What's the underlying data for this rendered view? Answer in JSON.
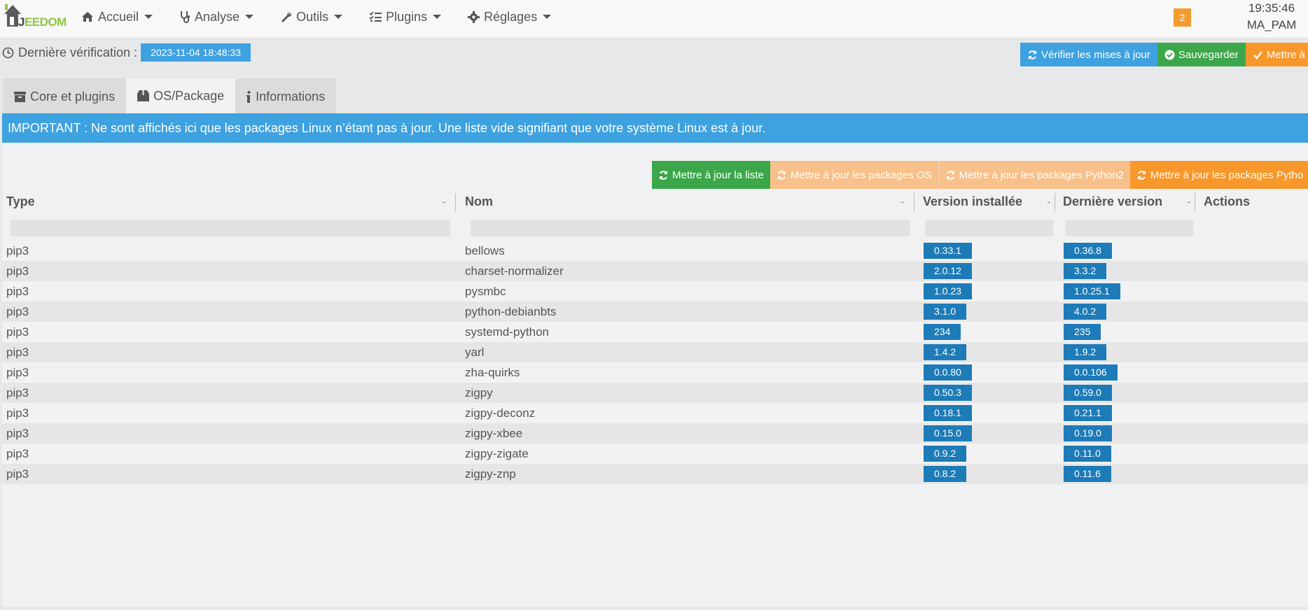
{
  "brand": {
    "logo_text": "EEDOM",
    "logo_letter": "J"
  },
  "nav": {
    "items": [
      {
        "label": "Accueil",
        "icon": "home-icon"
      },
      {
        "label": "Analyse",
        "icon": "stethoscope-icon"
      },
      {
        "label": "Outils",
        "icon": "wrench-icon"
      },
      {
        "label": "Plugins",
        "icon": "tasks-icon"
      },
      {
        "label": "Réglages",
        "icon": "cog-icon"
      }
    ],
    "notification_count": "2",
    "time": "19:35:46",
    "user": "MA_PAM"
  },
  "lastcheck": {
    "label": "Dernière vérification :",
    "value": "2023-11-04 18:48:33"
  },
  "top_actions": {
    "check": "Vérifier les mises à jour",
    "save": "Sauvegarder",
    "update": "Mettre à jo"
  },
  "tabs": [
    {
      "label": "Core et plugins",
      "icon": "archive-icon"
    },
    {
      "label": "OS/Package",
      "icon": "box-icon"
    },
    {
      "label": "Informations",
      "icon": "info-icon"
    }
  ],
  "alert": "IMPORTANT : Ne sont affichés ici que les packages Linux n’étant pas à jour. Une liste vide signifiant que votre système Linux est à jour.",
  "pkg_actions": {
    "update_list": "Mettre à jour la liste",
    "update_os": "Mettre à jour les packages OS",
    "update_python2": "Mettre à jour les packages Python2",
    "update_python3": "Mettre à jour les packages Pytho"
  },
  "table": {
    "headers": {
      "type": "Type",
      "name": "Nom",
      "installed": "Version installée",
      "latest": "Dernière version",
      "actions": "Actions",
      "sort": "-"
    },
    "rows": [
      {
        "type": "pip3",
        "name": "bellows",
        "installed": "0.33.1",
        "latest": "0.36.8"
      },
      {
        "type": "pip3",
        "name": "charset-normalizer",
        "installed": "2.0.12",
        "latest": "3.3.2"
      },
      {
        "type": "pip3",
        "name": "pysmbc",
        "installed": "1.0.23",
        "latest": "1.0.25.1"
      },
      {
        "type": "pip3",
        "name": "python-debianbts",
        "installed": "3.1.0",
        "latest": "4.0.2"
      },
      {
        "type": "pip3",
        "name": "systemd-python",
        "installed": "234",
        "latest": "235"
      },
      {
        "type": "pip3",
        "name": "yarl",
        "installed": "1.4.2",
        "latest": "1.9.2"
      },
      {
        "type": "pip3",
        "name": "zha-quirks",
        "installed": "0.0.80",
        "latest": "0.0.106"
      },
      {
        "type": "pip3",
        "name": "zigpy",
        "installed": "0.50.3",
        "latest": "0.59.0"
      },
      {
        "type": "pip3",
        "name": "zigpy-deconz",
        "installed": "0.18.1",
        "latest": "0.21.1"
      },
      {
        "type": "pip3",
        "name": "zigpy-xbee",
        "installed": "0.15.0",
        "latest": "0.19.0"
      },
      {
        "type": "pip3",
        "name": "zigpy-zigate",
        "installed": "0.9.2",
        "latest": "0.11.0"
      },
      {
        "type": "pip3",
        "name": "zigpy-znp",
        "installed": "0.8.2",
        "latest": "0.11.6"
      }
    ]
  },
  "colors": {
    "accent_green": "#8cc63f",
    "blue": "#3ea1e0",
    "green": "#3ca64a",
    "orange": "#f8972b",
    "badge_blue": "#1d7bb8"
  }
}
